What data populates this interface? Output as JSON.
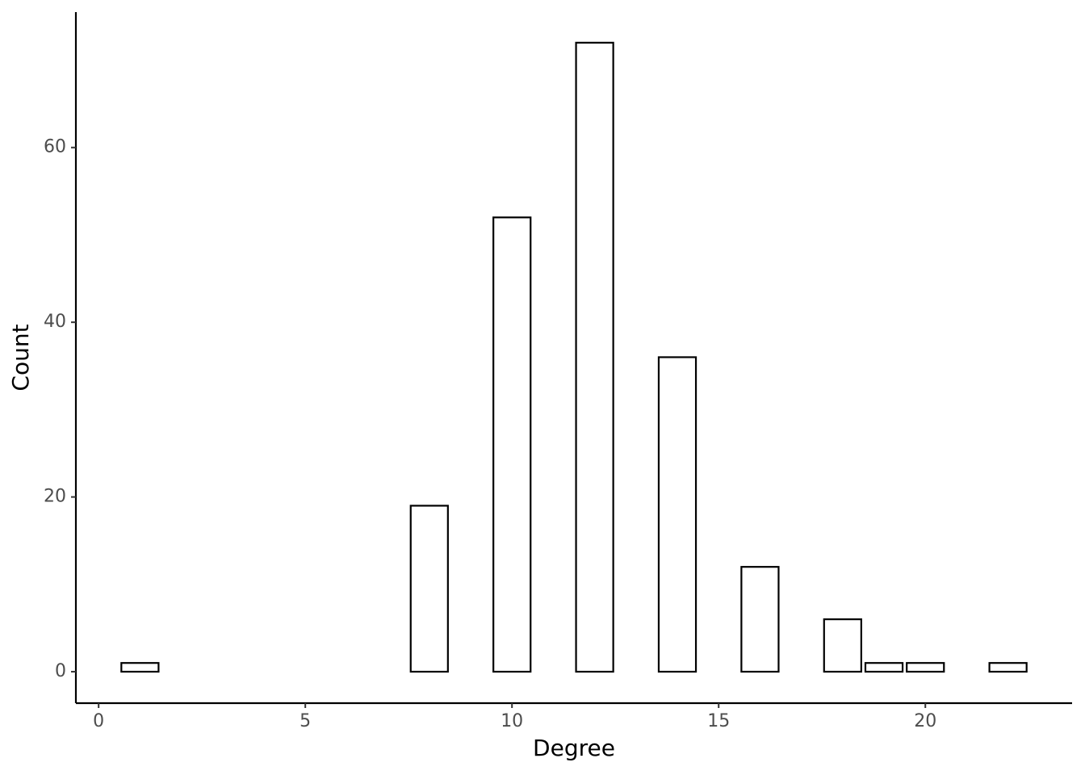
{
  "chart_data": {
    "type": "bar",
    "x_label": "Degree",
    "y_label": "Count",
    "x": [
      1,
      8,
      10,
      12,
      14,
      16,
      18,
      19,
      20,
      22
    ],
    "values": [
      1,
      19,
      52,
      72,
      36,
      12,
      6,
      1,
      1,
      1
    ],
    "color": "#ffffff",
    "edge_color": "#000000",
    "xlim": [
      -0.55,
      23.55
    ],
    "xticks": [
      0,
      5,
      10,
      15,
      20
    ],
    "ylim": [
      -3.6,
      75.5
    ],
    "yticks": [
      0,
      20,
      40,
      60
    ],
    "grid": false
  }
}
